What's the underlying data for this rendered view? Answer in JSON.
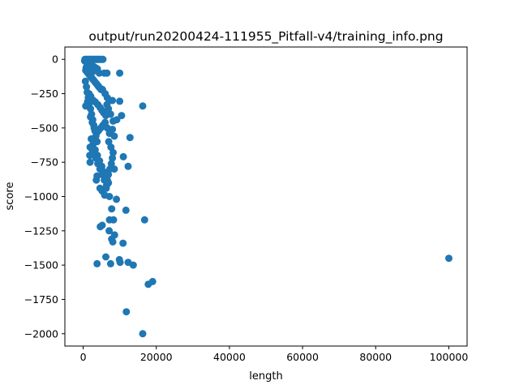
{
  "chart_data": {
    "type": "scatter",
    "title": "output/run20200424-111955_Pitfall-v4/training_info.png",
    "xlabel": "length",
    "ylabel": "score",
    "xlim": [
      -5000,
      105000
    ],
    "ylim": [
      -2090,
      90
    ],
    "xticks": [
      0,
      20000,
      40000,
      60000,
      80000,
      100000
    ],
    "yticks": [
      0,
      -250,
      -500,
      -750,
      -1000,
      -1250,
      -1500,
      -1750,
      -2000
    ],
    "grid": false,
    "legend": "none",
    "marker_color": "#1f77b4",
    "points": [
      [
        500,
        0
      ],
      [
        700,
        0
      ],
      [
        900,
        0
      ],
      [
        1100,
        0
      ],
      [
        1300,
        0
      ],
      [
        1500,
        0
      ],
      [
        1700,
        0
      ],
      [
        1900,
        0
      ],
      [
        2100,
        0
      ],
      [
        2300,
        0
      ],
      [
        2500,
        0
      ],
      [
        2700,
        0
      ],
      [
        2900,
        0
      ],
      [
        3100,
        0
      ],
      [
        3300,
        0
      ],
      [
        3500,
        0
      ],
      [
        3700,
        0
      ],
      [
        3900,
        0
      ],
      [
        4100,
        0
      ],
      [
        4300,
        0
      ],
      [
        4500,
        0
      ],
      [
        4700,
        0
      ],
      [
        4900,
        0
      ],
      [
        5200,
        0
      ],
      [
        5400,
        0
      ],
      [
        400,
        -10
      ],
      [
        600,
        -15
      ],
      [
        900,
        -20
      ],
      [
        1200,
        -25
      ],
      [
        1500,
        -30
      ],
      [
        1800,
        -35
      ],
      [
        2100,
        -40
      ],
      [
        2400,
        -45
      ],
      [
        2700,
        -50
      ],
      [
        3000,
        -55
      ],
      [
        3300,
        -60
      ],
      [
        3600,
        -65
      ],
      [
        3900,
        -70
      ],
      [
        700,
        -80
      ],
      [
        1000,
        -90
      ],
      [
        1300,
        -100
      ],
      [
        1600,
        -110
      ],
      [
        1900,
        -120
      ],
      [
        2200,
        -130
      ],
      [
        2500,
        -140
      ],
      [
        2800,
        -150
      ],
      [
        3100,
        -160
      ],
      [
        3400,
        -170
      ],
      [
        3700,
        -180
      ],
      [
        4000,
        -190
      ],
      [
        4300,
        -200
      ],
      [
        4600,
        -210
      ],
      [
        4900,
        -220
      ],
      [
        800,
        -60
      ],
      [
        1500,
        -70
      ],
      [
        2600,
        -90
      ],
      [
        4400,
        -100
      ],
      [
        5800,
        -100
      ],
      [
        6500,
        -100
      ],
      [
        10000,
        -100
      ],
      [
        600,
        -160
      ],
      [
        900,
        -200
      ],
      [
        1100,
        -240
      ],
      [
        1400,
        -280
      ],
      [
        1700,
        -320
      ],
      [
        2000,
        -360
      ],
      [
        2300,
        -400
      ],
      [
        2600,
        -440
      ],
      [
        2900,
        -480
      ],
      [
        3200,
        -520
      ],
      [
        3500,
        -560
      ],
      [
        3800,
        -600
      ],
      [
        1600,
        -250
      ],
      [
        2100,
        -270
      ],
      [
        2800,
        -300
      ],
      [
        3300,
        -310
      ],
      [
        4000,
        -330
      ],
      [
        4600,
        -350
      ],
      [
        5100,
        -370
      ],
      [
        5600,
        -390
      ],
      [
        6200,
        -410
      ],
      [
        700,
        -340
      ],
      [
        1200,
        -310
      ],
      [
        5300,
        -220
      ],
      [
        6000,
        -250
      ],
      [
        6600,
        -280
      ],
      [
        7200,
        -300
      ],
      [
        8000,
        -300
      ],
      [
        10000,
        -305
      ],
      [
        16300,
        -340
      ],
      [
        6500,
        -330
      ],
      [
        6900,
        -360
      ],
      [
        7500,
        -400
      ],
      [
        8200,
        -450
      ],
      [
        9200,
        -440
      ],
      [
        10500,
        -410
      ],
      [
        2000,
        -420
      ],
      [
        2500,
        -460
      ],
      [
        3000,
        -500
      ],
      [
        3600,
        -540
      ],
      [
        4200,
        -520
      ],
      [
        4800,
        -500
      ],
      [
        5400,
        -480
      ],
      [
        6000,
        -460
      ],
      [
        6600,
        -500
      ],
      [
        7200,
        -540
      ],
      [
        8000,
        -510
      ],
      [
        8500,
        -560
      ],
      [
        12800,
        -570
      ],
      [
        2200,
        -580
      ],
      [
        2700,
        -620
      ],
      [
        3300,
        -660
      ],
      [
        3900,
        -700
      ],
      [
        4500,
        -740
      ],
      [
        5100,
        -780
      ],
      [
        5700,
        -820
      ],
      [
        6300,
        -860
      ],
      [
        6900,
        -900
      ],
      [
        1900,
        -640
      ],
      [
        1800,
        -700
      ],
      [
        1900,
        -750
      ],
      [
        2500,
        -660
      ],
      [
        3000,
        -700
      ],
      [
        3500,
        -720
      ],
      [
        4000,
        -760
      ],
      [
        4600,
        -800
      ],
      [
        5200,
        -840
      ],
      [
        5800,
        -880
      ],
      [
        6400,
        -920
      ],
      [
        7000,
        -600
      ],
      [
        7600,
        -640
      ],
      [
        8200,
        -680
      ],
      [
        8000,
        -720
      ],
      [
        7700,
        -760
      ],
      [
        7300,
        -800
      ],
      [
        6900,
        -840
      ],
      [
        6600,
        -880
      ],
      [
        11000,
        -710
      ],
      [
        12300,
        -780
      ],
      [
        8500,
        -800
      ],
      [
        3800,
        -850
      ],
      [
        3600,
        -880
      ],
      [
        4600,
        -940
      ],
      [
        5200,
        -960
      ],
      [
        5900,
        -990
      ],
      [
        7200,
        -1000
      ],
      [
        9100,
        -1020
      ],
      [
        6300,
        -940
      ],
      [
        7800,
        -1090
      ],
      [
        11700,
        -1100
      ],
      [
        7200,
        -1170
      ],
      [
        8300,
        -1170
      ],
      [
        5200,
        -1210
      ],
      [
        4700,
        -1220
      ],
      [
        16800,
        -1170
      ],
      [
        7100,
        -1250
      ],
      [
        8600,
        -1280
      ],
      [
        7800,
        -1310
      ],
      [
        8100,
        -1330
      ],
      [
        10900,
        -1340
      ],
      [
        3800,
        -1490
      ],
      [
        6200,
        -1440
      ],
      [
        7500,
        -1490
      ],
      [
        9900,
        -1460
      ],
      [
        10100,
        -1480
      ],
      [
        12300,
        -1480
      ],
      [
        13700,
        -1500
      ],
      [
        17800,
        -1640
      ],
      [
        19000,
        -1620
      ],
      [
        11800,
        -1840
      ],
      [
        16300,
        -2000
      ],
      [
        100000,
        -1450
      ]
    ]
  }
}
